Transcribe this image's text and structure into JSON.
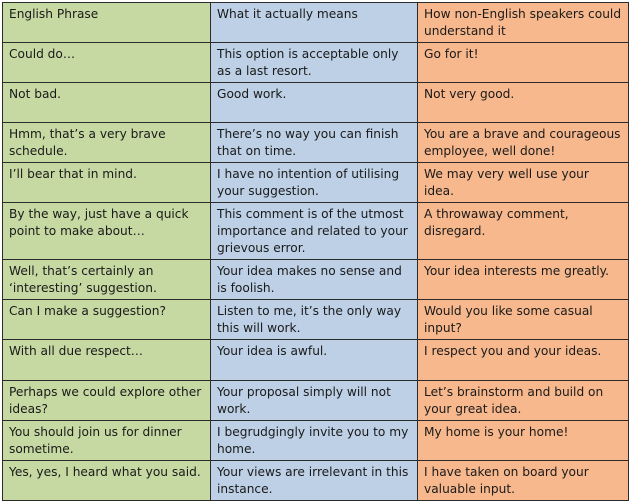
{
  "columns": [
    "English Phrase",
    "What it actually means",
    "How non-English speakers could understand it"
  ],
  "rows": [
    [
      "Could do…",
      "This option is acceptable only as a last resort.",
      "Go for it!"
    ],
    [
      "Not bad.",
      "Good work.",
      "Not very good."
    ],
    [
      "Hmm, that’s a very brave schedule.",
      "There’s no way you can finish that on time.",
      "You are a brave and courageous employee, well done!"
    ],
    [
      "I’ll bear that in mind.",
      "I have no intention of utilising your suggestion.",
      "We may very well use your idea."
    ],
    [
      "By the way, just have a quick point to make about…",
      "This comment is of the utmost importance and related to your grievous error.",
      "A throwaway comment, disregard."
    ],
    [
      "Well, that’s certainly an ‘interesting’ suggestion.",
      "Your idea makes no sense and is foolish.",
      "Your idea interests me greatly."
    ],
    [
      "Can I make a suggestion?",
      "Listen to me, it’s the only way this will work.",
      "Would you like some casual input?"
    ],
    [
      "With all due respect…",
      "Your idea is awful.",
      "I respect you and your ideas."
    ],
    [
      "Perhaps we could explore other ideas?",
      "Your proposal simply will not work.",
      "Let’s brainstorm and build on your great idea."
    ],
    [
      "You should join us for dinner sometime.",
      "I begrudgingly invite you to my home.",
      "My home is your home!"
    ],
    [
      "Yes, yes, I heard what you said.",
      "Your views are irrelevant in this instance.",
      "I have taken on board your valuable input."
    ]
  ],
  "colors": {
    "english_column": "#c7d9a3",
    "meaning_column": "#bdd0e6",
    "non_english_column": "#f8b88d",
    "border": "#2b2b2b"
  }
}
